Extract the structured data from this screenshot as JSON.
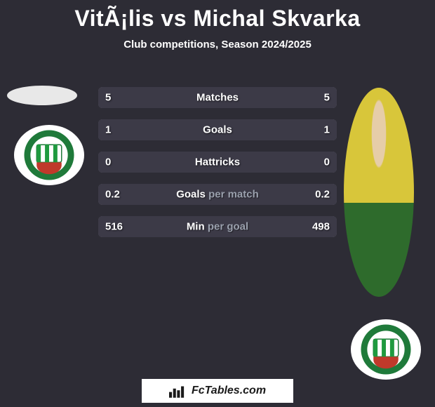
{
  "header": {
    "title": "VitÃ¡lis vs Michal Skvarka",
    "subtitle": "Club competitions, Season 2024/2025"
  },
  "players": {
    "left": {
      "name": "VitÃ¡lis"
    },
    "right": {
      "name": "Michal Skvarka"
    }
  },
  "badge_colors": {
    "ring": "#1f7a3a",
    "ring_text": "#ffffff",
    "shield_green": "#1f9a3f",
    "shield_white": "#ffffff",
    "shield_red": "#c0392b"
  },
  "stats": {
    "bar_bg": "#6a6a78",
    "left_fill": "#3c3a47",
    "right_fill": "#3c3a47",
    "text_white": "#ffffff",
    "text_gray": "#9aa0ad",
    "rows": [
      {
        "label_white": "Matches",
        "label_gray": "",
        "left": "5",
        "right": "5",
        "left_pct": 50,
        "right_pct": 50
      },
      {
        "label_white": "Goals",
        "label_gray": "",
        "left": "1",
        "right": "1",
        "left_pct": 50,
        "right_pct": 50
      },
      {
        "label_white": "Hattricks",
        "label_gray": "",
        "left": "0",
        "right": "0",
        "left_pct": 50,
        "right_pct": 50
      },
      {
        "label_white": "Goals",
        "label_gray": "per match",
        "left": "0.2",
        "right": "0.2",
        "left_pct": 50,
        "right_pct": 50
      },
      {
        "label_white": "Min",
        "label_gray": "per goal",
        "left": "516",
        "right": "498",
        "left_pct": 51,
        "right_pct": 49
      }
    ]
  },
  "footer": {
    "text": "FcTables.com",
    "icon_name": "fctables-logo"
  }
}
